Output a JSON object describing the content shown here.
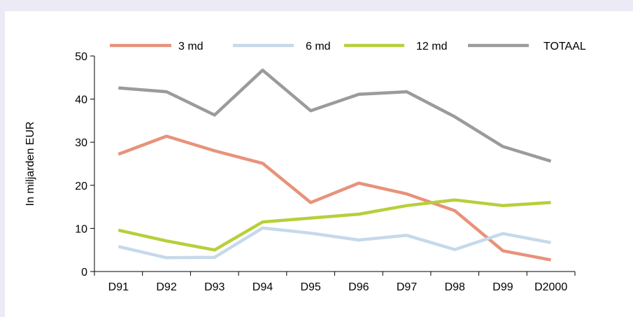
{
  "chart_data": {
    "type": "line",
    "categories": [
      "D91",
      "D92",
      "D93",
      "D94",
      "D95",
      "D96",
      "D97",
      "D98",
      "D99",
      "D2000"
    ],
    "ylabel": "In miljarden EUR",
    "xlabel": "",
    "ylim": [
      0,
      50
    ],
    "yticks": [
      "0",
      "10",
      "20",
      "30",
      "40",
      "50"
    ],
    "grid": false,
    "legend_position": "top",
    "series": [
      {
        "name": "3 md",
        "color": "#e8927a",
        "values": [
          27.2,
          31.4,
          28.0,
          25.1,
          16.0,
          20.5,
          18.0,
          14.1,
          4.8,
          2.7
        ]
      },
      {
        "name": "6 md",
        "color": "#c6d9ea",
        "values": [
          5.8,
          3.2,
          3.3,
          10.1,
          8.9,
          7.3,
          8.4,
          5.1,
          8.8,
          6.7
        ]
      },
      {
        "name": "12 md",
        "color": "#b7cf3a",
        "values": [
          9.6,
          7.1,
          5.0,
          11.5,
          12.4,
          13.3,
          15.3,
          16.6,
          15.3,
          16.0
        ]
      },
      {
        "name": "TOTAAL",
        "color": "#9b9b9b",
        "values": [
          42.6,
          41.7,
          36.3,
          46.7,
          37.3,
          41.1,
          41.7,
          35.9,
          29.0,
          25.6
        ]
      }
    ]
  }
}
